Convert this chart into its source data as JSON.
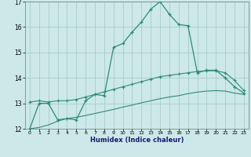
{
  "xlabel": "Humidex (Indice chaleur)",
  "bg_color": "#cce8e8",
  "grid_color": "#aacccc",
  "line_color": "#2e8b7a",
  "xlim": [
    -0.5,
    23.5
  ],
  "ylim": [
    12,
    17
  ],
  "yticks": [
    12,
    13,
    14,
    15,
    16,
    17
  ],
  "xticks": [
    0,
    1,
    2,
    3,
    4,
    5,
    6,
    7,
    8,
    9,
    10,
    11,
    12,
    13,
    14,
    15,
    16,
    17,
    18,
    19,
    20,
    21,
    22,
    23
  ],
  "line1_x": [
    0,
    1,
    2,
    3,
    4,
    5,
    6,
    7,
    8,
    9,
    10,
    11,
    12,
    13,
    14,
    15,
    16,
    17,
    18,
    19,
    20,
    21,
    22,
    23
  ],
  "line1_y": [
    12.0,
    13.0,
    13.0,
    12.35,
    12.4,
    12.35,
    13.1,
    13.35,
    13.3,
    15.2,
    15.35,
    15.8,
    16.2,
    16.7,
    17.0,
    16.5,
    16.1,
    16.05,
    14.2,
    14.3,
    14.3,
    14.0,
    13.65,
    13.4
  ],
  "line1_markers": [
    0,
    1,
    2,
    3,
    4,
    5,
    6,
    7,
    8,
    9,
    10,
    11,
    12,
    13,
    14,
    15,
    16,
    17,
    18,
    19,
    20,
    21,
    22,
    23
  ],
  "line2_x": [
    0,
    1,
    2,
    3,
    4,
    5,
    6,
    7,
    8,
    9,
    10,
    11,
    12,
    13,
    14,
    15,
    16,
    17,
    18,
    19,
    20,
    21,
    22,
    23
  ],
  "line2_y": [
    13.05,
    13.1,
    13.05,
    13.1,
    13.1,
    13.15,
    13.25,
    13.35,
    13.45,
    13.55,
    13.65,
    13.75,
    13.85,
    13.95,
    14.05,
    14.1,
    14.15,
    14.2,
    14.25,
    14.28,
    14.28,
    14.2,
    13.9,
    13.5
  ],
  "line3_x": [
    0,
    1,
    2,
    3,
    4,
    5,
    6,
    7,
    8,
    9,
    10,
    11,
    12,
    13,
    14,
    15,
    16,
    17,
    18,
    19,
    20,
    21,
    22,
    23
  ],
  "line3_y": [
    12.0,
    12.05,
    12.15,
    12.3,
    12.4,
    12.45,
    12.52,
    12.6,
    12.68,
    12.76,
    12.85,
    12.93,
    13.02,
    13.1,
    13.18,
    13.25,
    13.3,
    13.38,
    13.44,
    13.48,
    13.5,
    13.48,
    13.4,
    13.35
  ]
}
